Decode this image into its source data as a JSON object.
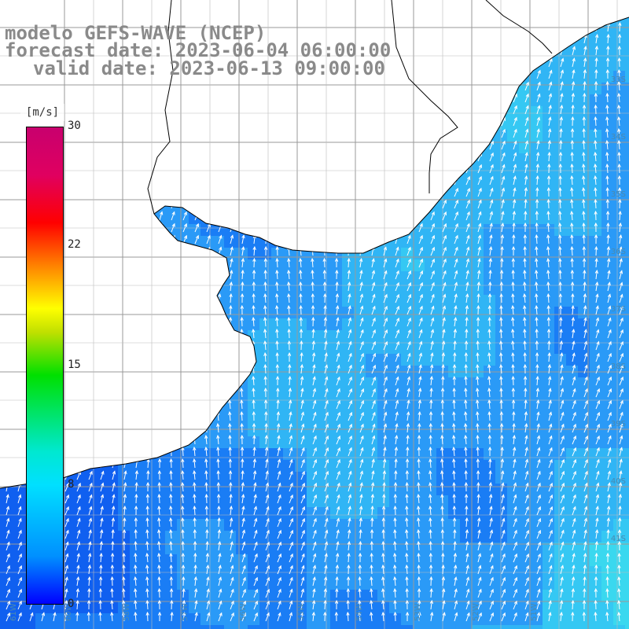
{
  "title": {
    "line1": "modelo GEFS-WAVE (NCEP)",
    "line2": "forecast date: 2023-06-04 06:00:00",
    "line3": "valid date: 2023-06-13 09:00:00"
  },
  "colorbar": {
    "unit": "[m/s]",
    "ticks": [
      "30",
      "22",
      "15",
      "8",
      "0"
    ],
    "range": [
      0,
      30
    ],
    "colors": [
      "#0000ff",
      "#0090ff",
      "#00e0ff",
      "#00e000",
      "#ffff00",
      "#ff9000",
      "#ff0000",
      "#c8006e"
    ]
  },
  "map": {
    "grid_on": true,
    "arrow_color": "#ffffff",
    "land_color": "#ffffff",
    "coastline_color": "#000000",
    "field_colors": [
      "#1060f0",
      "#1a7df5",
      "#2a9af7",
      "#30b5f5",
      "#35c8f3",
      "#3ad8ef",
      "#40e6e0"
    ],
    "lat_labels": [
      "33S",
      "34S",
      "35S",
      "36S",
      "37S",
      "38S",
      "39S",
      "40S",
      "41S"
    ],
    "lon_labels": [
      "61W",
      "60W",
      "58W",
      "57W",
      "56W",
      "55W",
      "54W",
      "53W",
      "52W",
      "51W"
    ]
  }
}
